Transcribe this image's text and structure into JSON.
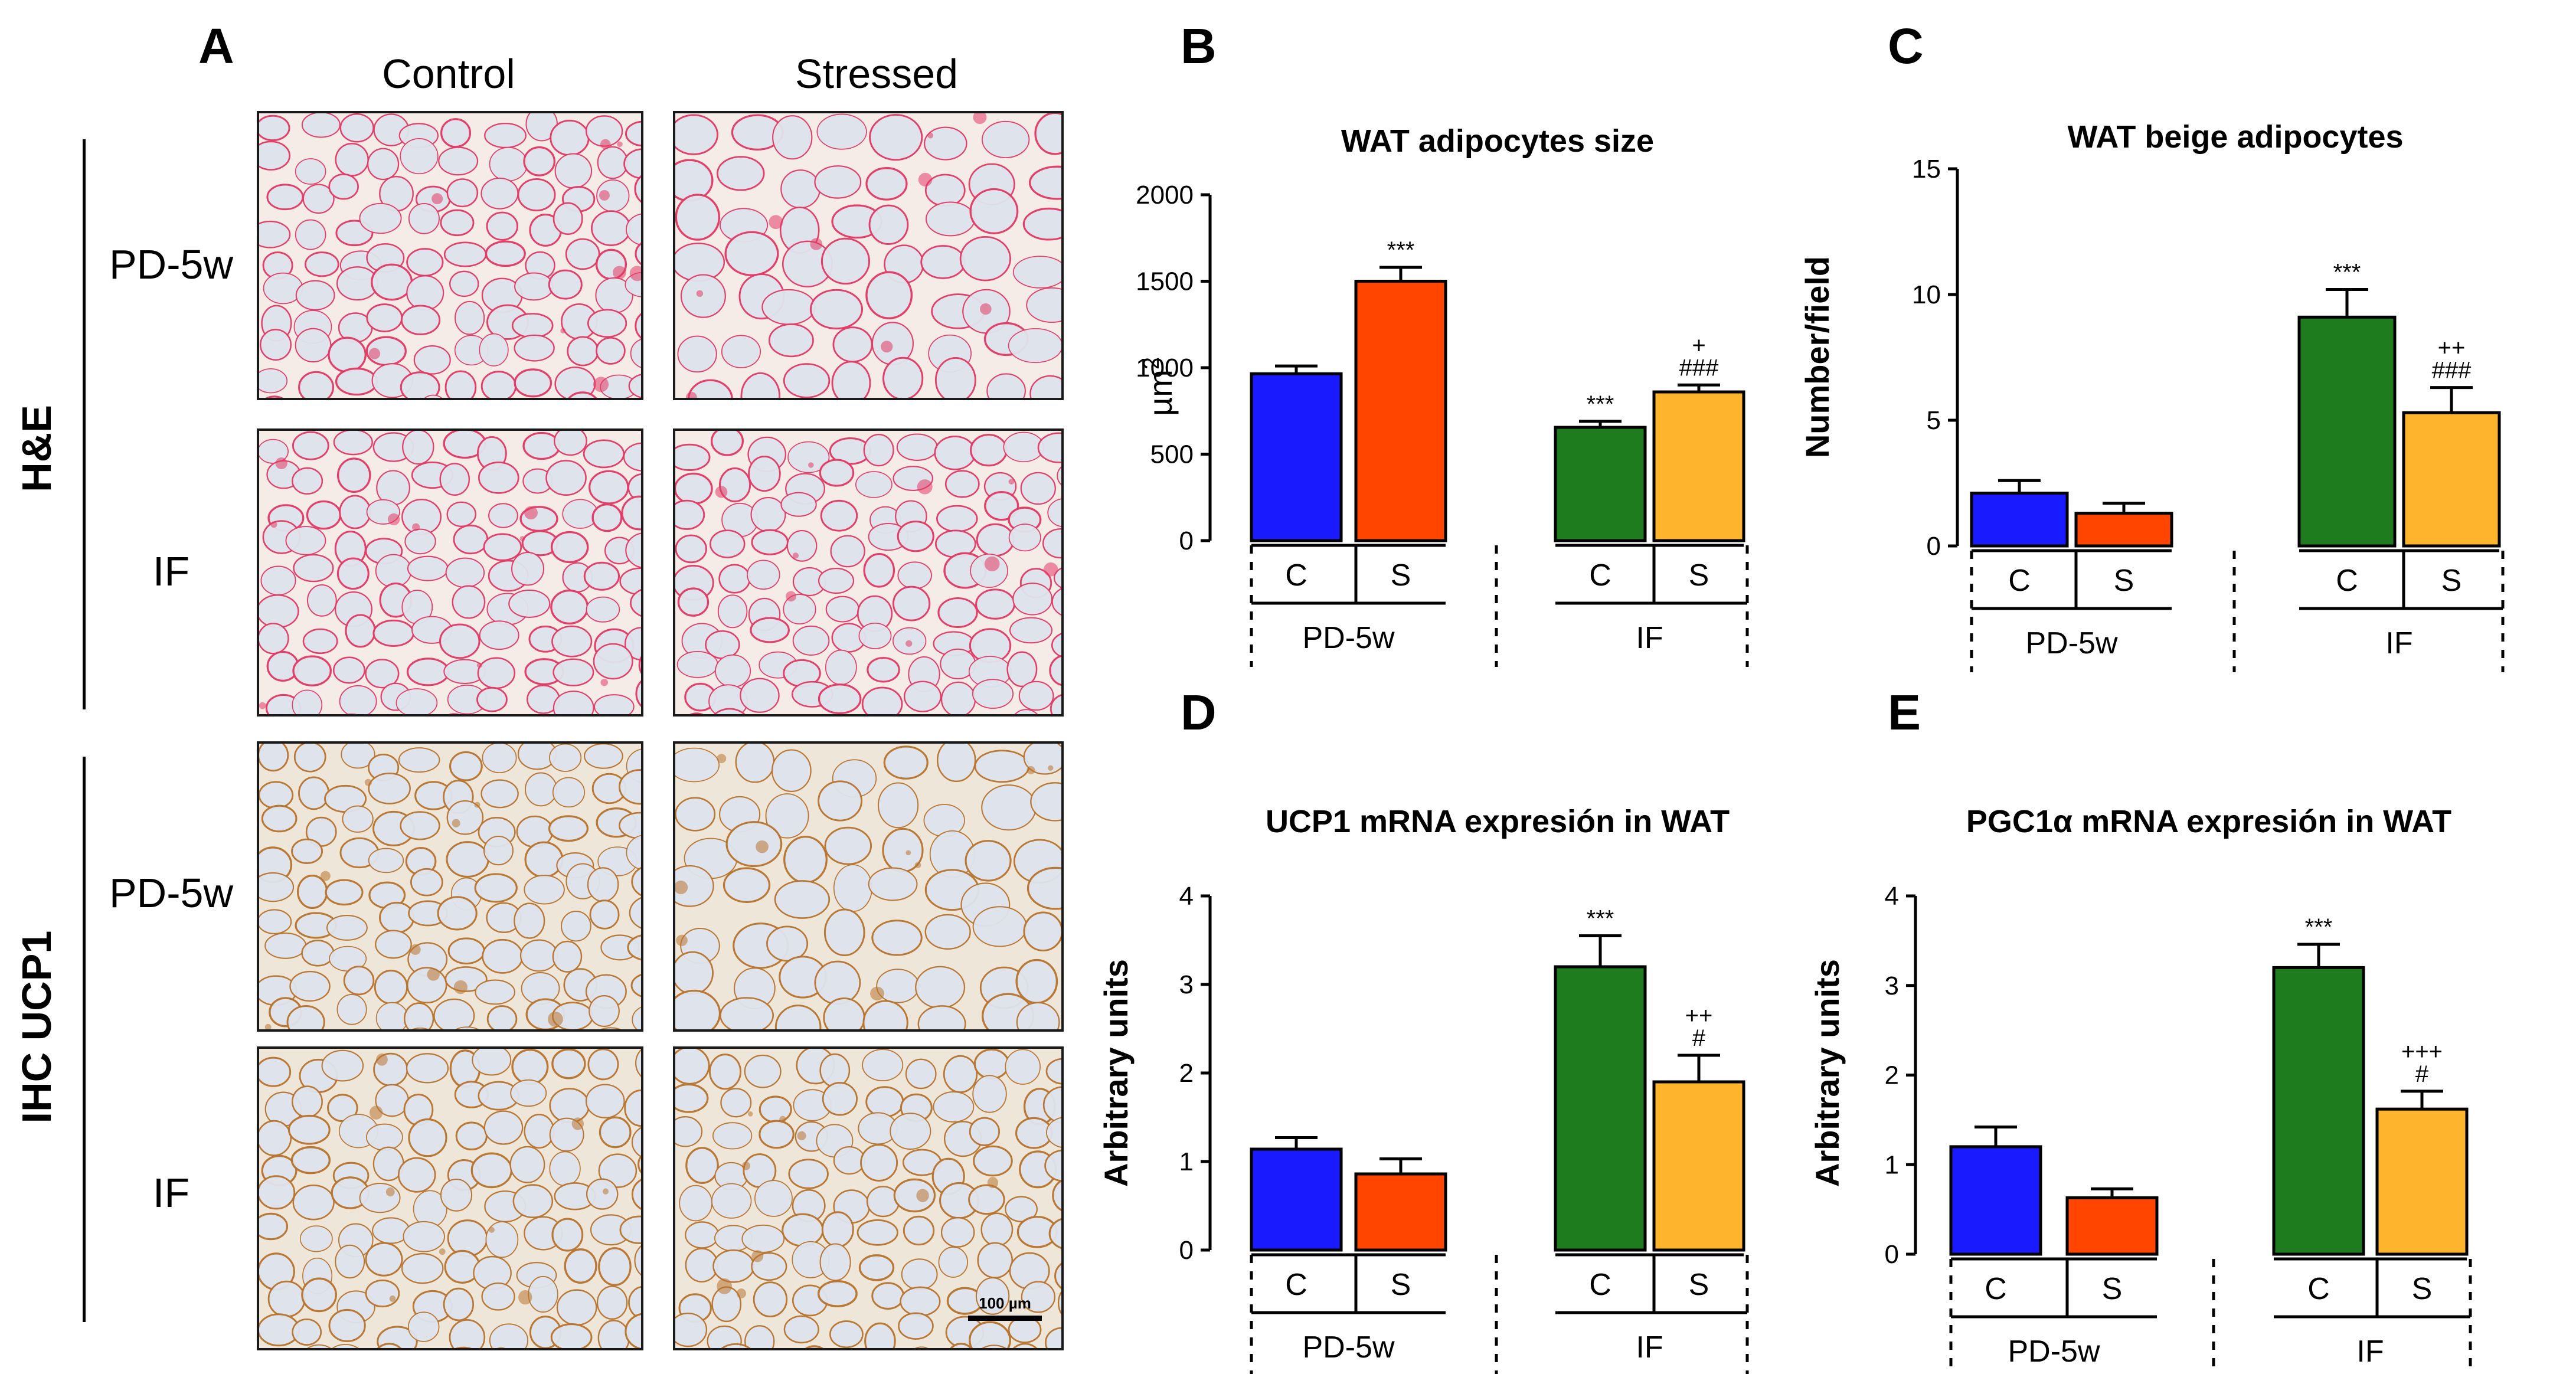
{
  "panel_a": {
    "letter": "A",
    "columns": [
      "Control",
      "Stressed"
    ],
    "stains": [
      "H&E",
      "IHC UCP1"
    ],
    "rows": [
      "PD-5w",
      "IF",
      "PD-5w",
      "IF"
    ],
    "scale_bar": "100 µm",
    "colors": {
      "he_membrane": "#e23a64",
      "he_background": "#f5ece8",
      "ihc_membrane": "#b8742f",
      "ihc_background": "#efe6da",
      "cell_fill": "#dfe3ec"
    }
  },
  "chart_data": [
    {
      "letter": "B",
      "type": "bar",
      "title": "WAT adipocytes size",
      "ylabel": "µm2",
      "ylim": [
        0,
        2000
      ],
      "yticks": [
        "0",
        "500",
        "1000",
        "1500",
        "2000"
      ],
      "groups": [
        "PD-5w",
        "IF"
      ],
      "categories": [
        "C",
        "S",
        "C",
        "S"
      ],
      "values": [
        965,
        1500,
        655,
        860
      ],
      "errors": [
        45,
        80,
        35,
        40
      ],
      "annotations": [
        [],
        [
          "***"
        ],
        [
          "***"
        ],
        [
          "+",
          "###"
        ]
      ],
      "colors": [
        "#1a1aff",
        "#ff4500",
        "#1e7b1e",
        "#ffb42e"
      ],
      "grid": false,
      "legend": "none"
    },
    {
      "letter": "C",
      "type": "bar",
      "title": "WAT beige adipocytes",
      "ylabel": "Number/field",
      "ylim": [
        0,
        15
      ],
      "yticks": [
        "0",
        "5",
        "10",
        "15"
      ],
      "groups": [
        "PD-5w",
        "IF"
      ],
      "categories": [
        "C",
        "S",
        "C",
        "S"
      ],
      "values": [
        2.1,
        1.3,
        9.1,
        5.3
      ],
      "errors": [
        0.5,
        0.4,
        1.1,
        1.0
      ],
      "annotations": [
        [],
        [],
        [
          "***"
        ],
        [
          "++",
          "###"
        ]
      ],
      "colors": [
        "#1a1aff",
        "#ff4500",
        "#1e7b1e",
        "#ffb42e"
      ],
      "grid": false,
      "legend": "none"
    },
    {
      "letter": "D",
      "type": "bar",
      "title": "UCP1 mRNA expresión in WAT",
      "ylabel": "Arbitrary units",
      "ylim": [
        0,
        4
      ],
      "yticks": [
        "0",
        "1",
        "2",
        "3",
        "4"
      ],
      "groups": [
        "PD-5w",
        "IF"
      ],
      "categories": [
        "C",
        "S",
        "C",
        "S"
      ],
      "values": [
        1.14,
        0.86,
        3.2,
        1.9
      ],
      "errors": [
        0.13,
        0.17,
        0.35,
        0.3
      ],
      "annotations": [
        [],
        [],
        [
          "***"
        ],
        [
          "++",
          "#"
        ]
      ],
      "colors": [
        "#1a1aff",
        "#ff4500",
        "#1e7b1e",
        "#ffb42e"
      ],
      "grid": false,
      "legend": "none"
    },
    {
      "letter": "E",
      "type": "bar",
      "title": "PGC1α mRNA expresión in WAT",
      "ylabel": "Arbitrary units",
      "ylim": [
        0,
        4
      ],
      "yticks": [
        "0",
        "1",
        "2",
        "3",
        "4"
      ],
      "groups": [
        "PD-5w",
        "IF"
      ],
      "categories": [
        "C",
        "S",
        "C",
        "S"
      ],
      "values": [
        1.2,
        0.63,
        3.2,
        1.62
      ],
      "errors": [
        0.22,
        0.1,
        0.26,
        0.2
      ],
      "annotations": [
        [],
        [],
        [
          "***"
        ],
        [
          "+++",
          "#"
        ]
      ],
      "colors": [
        "#1a1aff",
        "#ff4500",
        "#1e7b1e",
        "#ffb42e"
      ],
      "grid": false,
      "legend": "none"
    }
  ]
}
